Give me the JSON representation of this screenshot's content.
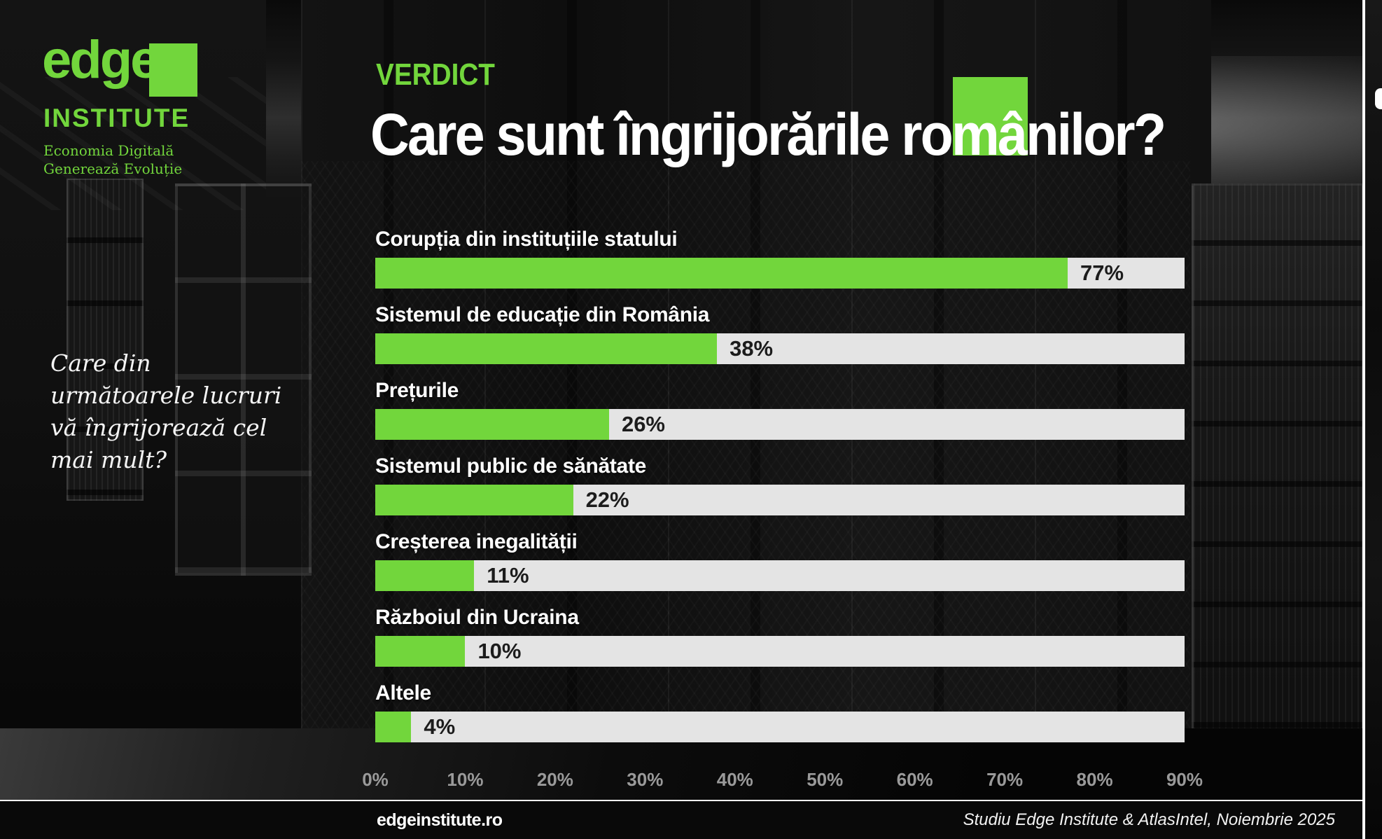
{
  "brand": {
    "logo_text": "edge",
    "logo_subtext": "INSTITUTE",
    "tagline_line1": "Economia Digitală",
    "tagline_line2": "Generează Evoluție"
  },
  "header": {
    "kicker": "VERDICT",
    "title": "Care sunt îngrijorările românilor?"
  },
  "question": {
    "text": "Care din următoarele lucruri vă îngrijorează cel mai mult?"
  },
  "chart_data": {
    "type": "bar",
    "orientation": "horizontal",
    "title": "Care sunt îngrijorările românilor?",
    "categories": [
      "Corupția din instituțiile statului",
      "Sistemul de educație din România",
      "Prețurile",
      "Sistemul public de sănătate",
      "Creșterea inegalității",
      "Războiul din Ucraina",
      "Altele"
    ],
    "values": [
      77,
      38,
      26,
      22,
      11,
      10,
      4
    ],
    "value_labels": [
      "77%",
      "38%",
      "26%",
      "22%",
      "11%",
      "10%",
      "4%"
    ],
    "axis_ticks": [
      "0%",
      "10%",
      "20%",
      "30%",
      "40%",
      "50%",
      "60%",
      "70%",
      "80%",
      "90%"
    ],
    "xlim": [
      0,
      90
    ],
    "grid": false,
    "legend": false
  },
  "footer": {
    "site": "edgeinstitute.ro",
    "source": "Studiu Edge Institute & AtlasIntel, Noiembrie 2025"
  },
  "colors": {
    "accent_green": "#72d63c",
    "bar_track": "#e4e4e4",
    "bar_value_text": "#1c1c1c",
    "axis_tick_text": "#9a9a9a",
    "title_text": "#ffffff",
    "background": "#0b0b0b"
  }
}
